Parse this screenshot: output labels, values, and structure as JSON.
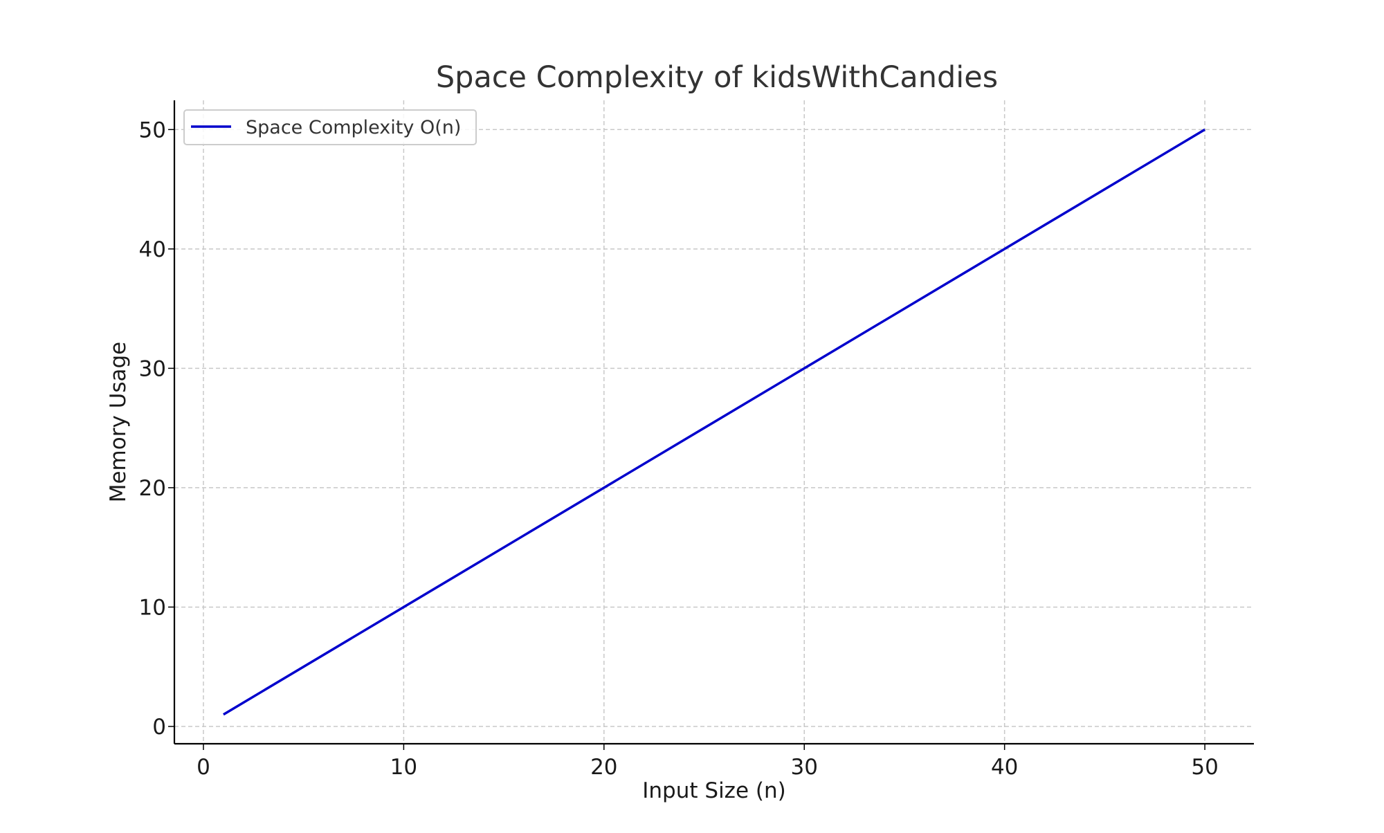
{
  "chart_data": {
    "type": "line",
    "title": "Space Complexity of kidsWithCandies",
    "xlabel": "Input Size (n)",
    "ylabel": "Memory Usage",
    "xlim": [
      -1.45,
      52.45
    ],
    "ylim": [
      -1.45,
      52.45
    ],
    "x_ticks": [
      0,
      10,
      20,
      30,
      40,
      50
    ],
    "y_ticks": [
      0,
      10,
      20,
      30,
      40,
      50
    ],
    "grid": true,
    "legend_position": "top-left",
    "series": [
      {
        "name": "Space Complexity O(n)",
        "color": "#0000cc",
        "x": [
          1,
          50
        ],
        "y": [
          1,
          50
        ]
      }
    ]
  }
}
